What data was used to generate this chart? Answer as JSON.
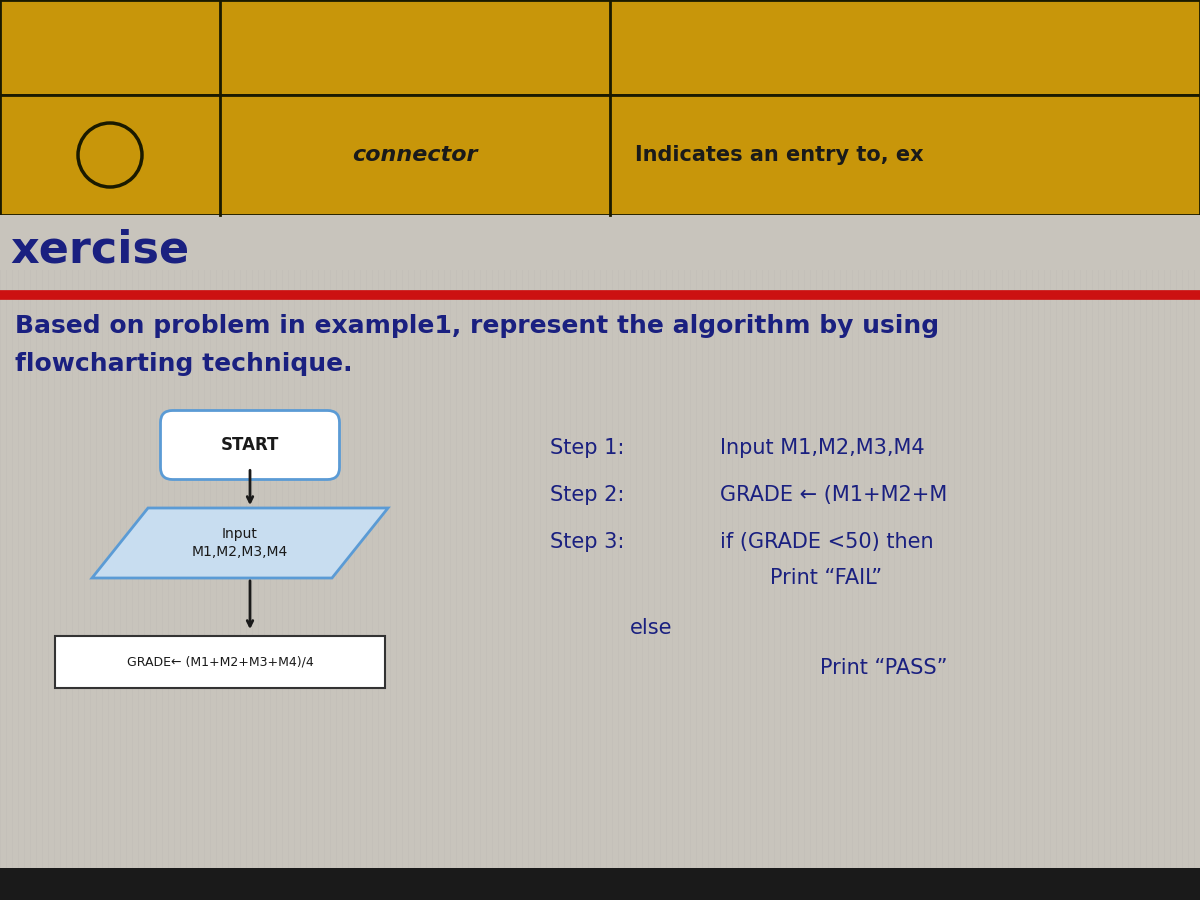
{
  "bg_color": "#c8c4bc",
  "table_bg": "#c8960a",
  "table_border": "#1a1a00",
  "table_row1_text": "connector",
  "table_row1_desc": "Indicates an entry to, ex",
  "circle_color": "#c8960a",
  "circle_border": "#1a1a00",
  "exercise_text": "xercise",
  "exercise_color": "#1a2080",
  "red_line_color": "#cc1111",
  "problem_text": "Based on problem in example1, represent the algorithm by using\nflowcharting technique.",
  "problem_color": "#1a2080",
  "problem_fontsize": 18,
  "step1_label": "Step 1:",
  "step1_val": "Input M1,M2,M3,M4",
  "step2_label": "Step 2:",
  "step2_val": "GRADE ← (M1+M2+M",
  "step3_label": "Step 3:",
  "step3_val": "if (GRADE <50) then",
  "step3_sub": "Print “FAIL”",
  "else_text": "else",
  "print_pass": "Print “PASS”",
  "steps_color": "#1a2080",
  "steps_fontsize": 15,
  "start_box_color": "#ffffff",
  "start_box_border": "#5b9bd5",
  "start_text": "START",
  "input_box_color": "#c8ddf0",
  "input_box_border": "#5b9bd5",
  "input_text": "Input\nM1,M2,M3,M4",
  "grade_box_color": "#ffffff",
  "grade_box_border": "#333333",
  "grade_text": "GRADE← (M1+M2+M3+M4)/4",
  "arrow_color": "#1a1a1a",
  "flowchart_text_color": "#1a1a1a",
  "dark_bar_color": "#1a1a1a"
}
